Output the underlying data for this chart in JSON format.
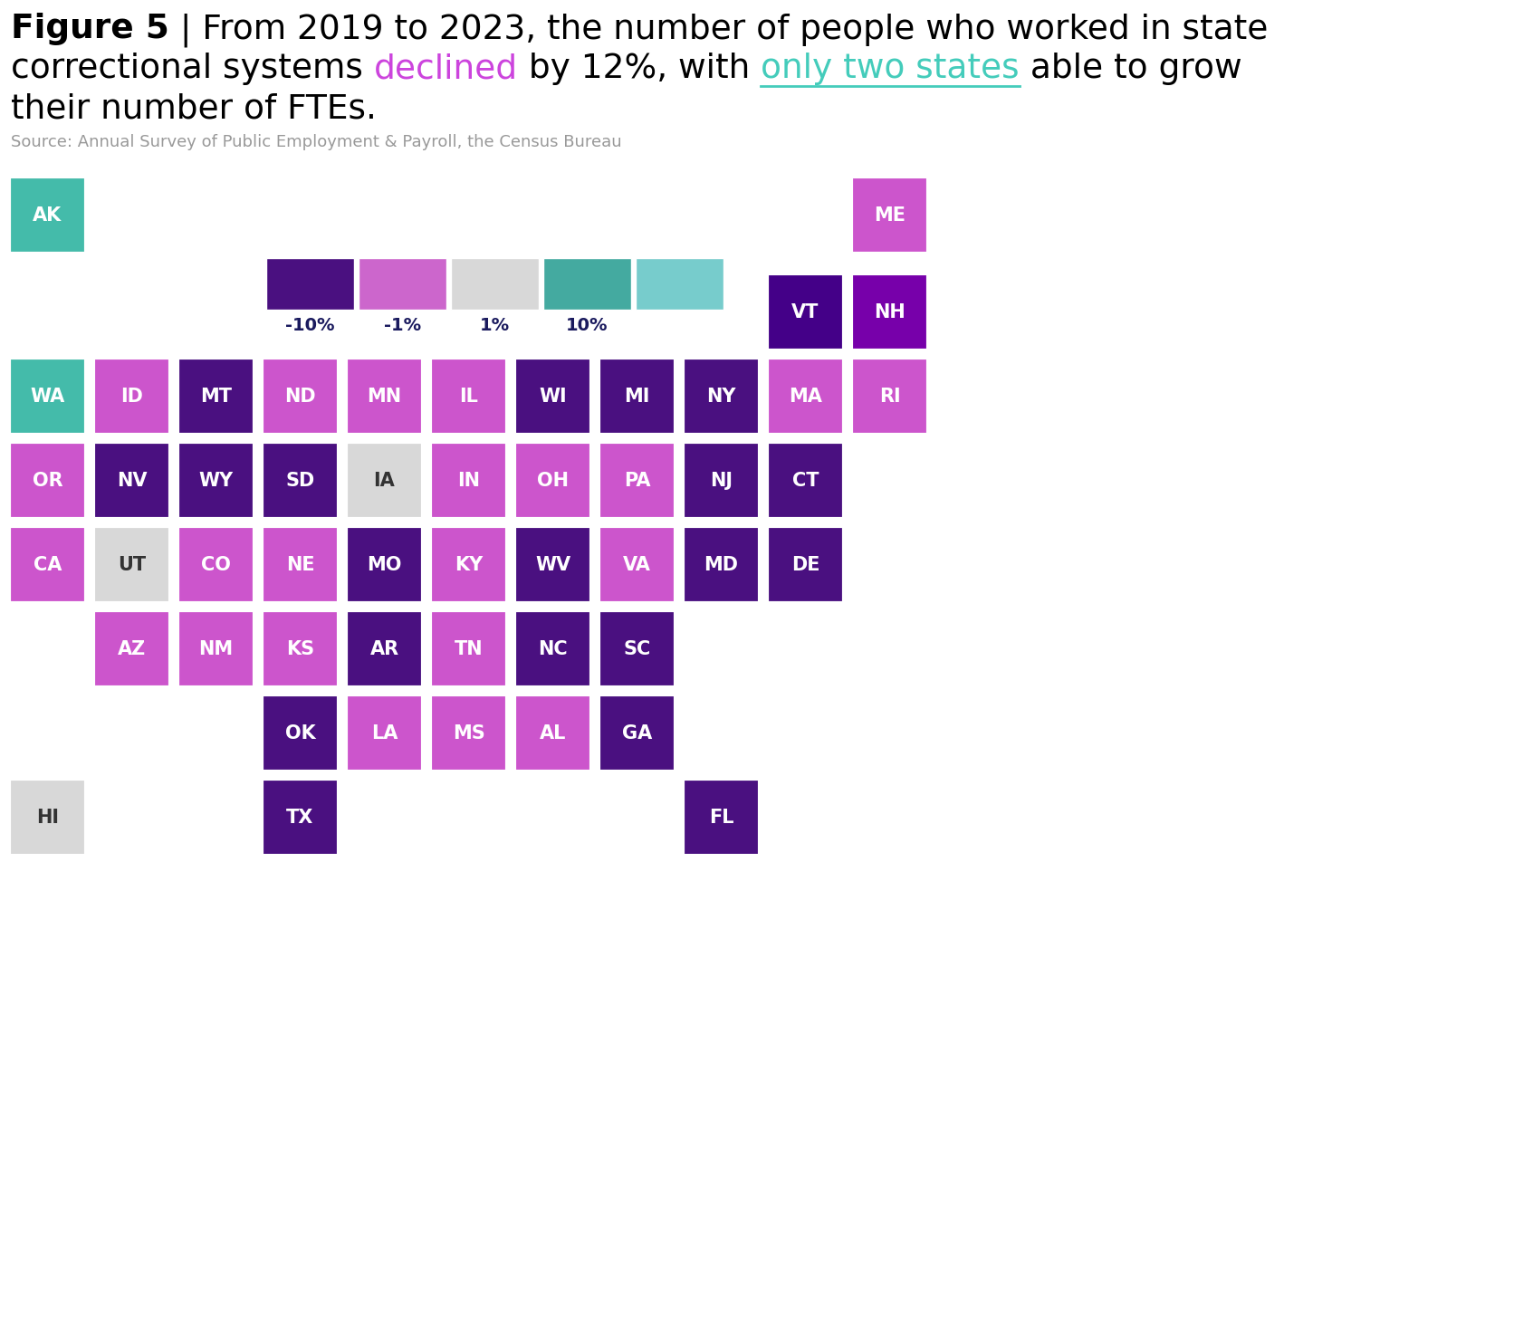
{
  "source": "Source: Annual Survey of Public Employment & Payroll, the Census Bureau",
  "background_color": "#ffffff",
  "legend_colors": [
    "#4a1080",
    "#cc66cc",
    "#d8d8d8",
    "#44aaa0",
    "#77cccc"
  ],
  "legend_labels": [
    "-10%",
    "-1%",
    "1%",
    "10%"
  ],
  "states": {
    "AK": {
      "color": "#44bbaa",
      "grid_row": 0,
      "grid_col": 0
    },
    "ME": {
      "color": "#cc55cc",
      "grid_row": 0,
      "grid_col": 10
    },
    "VT": {
      "color": "#440088",
      "grid_row": 1,
      "grid_col": 9
    },
    "NH": {
      "color": "#7700aa",
      "grid_row": 1,
      "grid_col": 10
    },
    "WA": {
      "color": "#44bbaa",
      "grid_row": 2,
      "grid_col": 0
    },
    "ID": {
      "color": "#cc55cc",
      "grid_row": 2,
      "grid_col": 1
    },
    "MT": {
      "color": "#4a1080",
      "grid_row": 2,
      "grid_col": 2
    },
    "ND": {
      "color": "#cc55cc",
      "grid_row": 2,
      "grid_col": 3
    },
    "MN": {
      "color": "#cc55cc",
      "grid_row": 2,
      "grid_col": 4
    },
    "IL": {
      "color": "#cc55cc",
      "grid_row": 2,
      "grid_col": 5
    },
    "WI": {
      "color": "#4a1080",
      "grid_row": 2,
      "grid_col": 6
    },
    "MI": {
      "color": "#4a1080",
      "grid_row": 2,
      "grid_col": 7
    },
    "NY": {
      "color": "#4a1080",
      "grid_row": 2,
      "grid_col": 8
    },
    "MA": {
      "color": "#cc55cc",
      "grid_row": 2,
      "grid_col": 9
    },
    "RI": {
      "color": "#cc55cc",
      "grid_row": 2,
      "grid_col": 10
    },
    "OR": {
      "color": "#cc55cc",
      "grid_row": 3,
      "grid_col": 0
    },
    "NV": {
      "color": "#4a1080",
      "grid_row": 3,
      "grid_col": 1
    },
    "WY": {
      "color": "#4a1080",
      "grid_row": 3,
      "grid_col": 2
    },
    "SD": {
      "color": "#4a1080",
      "grid_row": 3,
      "grid_col": 3
    },
    "IA": {
      "color": "#d8d8d8",
      "grid_row": 3,
      "grid_col": 4
    },
    "IN": {
      "color": "#cc55cc",
      "grid_row": 3,
      "grid_col": 5
    },
    "OH": {
      "color": "#cc55cc",
      "grid_row": 3,
      "grid_col": 6
    },
    "PA": {
      "color": "#cc55cc",
      "grid_row": 3,
      "grid_col": 7
    },
    "NJ": {
      "color": "#4a1080",
      "grid_row": 3,
      "grid_col": 8
    },
    "CT": {
      "color": "#4a1080",
      "grid_row": 3,
      "grid_col": 9
    },
    "CA": {
      "color": "#cc55cc",
      "grid_row": 4,
      "grid_col": 0
    },
    "UT": {
      "color": "#d8d8d8",
      "grid_row": 4,
      "grid_col": 1
    },
    "CO": {
      "color": "#cc55cc",
      "grid_row": 4,
      "grid_col": 2
    },
    "NE": {
      "color": "#cc55cc",
      "grid_row": 4,
      "grid_col": 3
    },
    "MO": {
      "color": "#4a1080",
      "grid_row": 4,
      "grid_col": 4
    },
    "KY": {
      "color": "#cc55cc",
      "grid_row": 4,
      "grid_col": 5
    },
    "WV": {
      "color": "#4a1080",
      "grid_row": 4,
      "grid_col": 6
    },
    "VA": {
      "color": "#cc55cc",
      "grid_row": 4,
      "grid_col": 7
    },
    "MD": {
      "color": "#4a1080",
      "grid_row": 4,
      "grid_col": 8
    },
    "DE": {
      "color": "#4a1080",
      "grid_row": 4,
      "grid_col": 9
    },
    "AZ": {
      "color": "#cc55cc",
      "grid_row": 5,
      "grid_col": 1
    },
    "NM": {
      "color": "#cc55cc",
      "grid_row": 5,
      "grid_col": 2
    },
    "KS": {
      "color": "#cc55cc",
      "grid_row": 5,
      "grid_col": 3
    },
    "AR": {
      "color": "#4a1080",
      "grid_row": 5,
      "grid_col": 4
    },
    "TN": {
      "color": "#cc55cc",
      "grid_row": 5,
      "grid_col": 5
    },
    "NC": {
      "color": "#4a1080",
      "grid_row": 5,
      "grid_col": 6
    },
    "SC": {
      "color": "#4a1080",
      "grid_row": 5,
      "grid_col": 7
    },
    "OK": {
      "color": "#4a1080",
      "grid_row": 6,
      "grid_col": 3
    },
    "LA": {
      "color": "#cc55cc",
      "grid_row": 6,
      "grid_col": 4
    },
    "MS": {
      "color": "#cc55cc",
      "grid_row": 6,
      "grid_col": 5
    },
    "AL": {
      "color": "#cc55cc",
      "grid_row": 6,
      "grid_col": 6
    },
    "GA": {
      "color": "#4a1080",
      "grid_row": 6,
      "grid_col": 7
    },
    "HI": {
      "color": "#d8d8d8",
      "grid_row": 7,
      "grid_col": 0
    },
    "TX": {
      "color": "#4a1080",
      "grid_row": 7,
      "grid_col": 3
    },
    "FL": {
      "color": "#4a1080",
      "grid_row": 7,
      "grid_col": 8
    }
  }
}
